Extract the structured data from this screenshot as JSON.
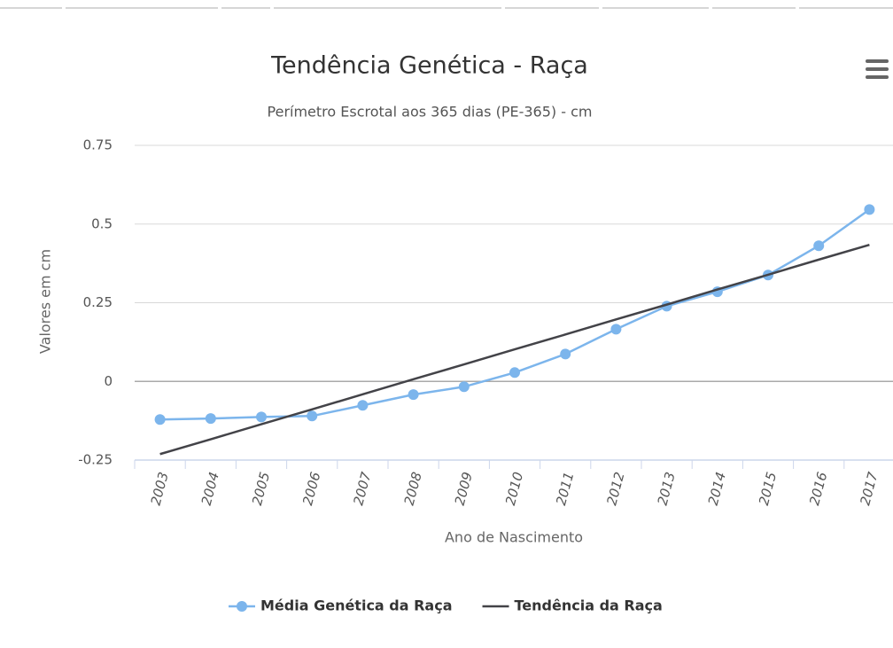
{
  "chart_data": {
    "type": "line",
    "title": "Tendência Genética - Raça",
    "subtitle": "Perímetro Escrotal aos 365 dias (PE-365) - cm",
    "x_label": "Ano de Nascimento",
    "y_label": "Valores em cm",
    "categories": [
      "2003",
      "2004",
      "2005",
      "2006",
      "2007",
      "2008",
      "2009",
      "2010",
      "2011",
      "2012",
      "2013",
      "2014",
      "2015",
      "2016",
      "2017"
    ],
    "series": [
      {
        "name": "Média Genética da Raça",
        "color": "#7cb5ec",
        "markers": true,
        "values": [
          -0.121,
          -0.118,
          -0.113,
          -0.11,
          -0.076,
          -0.042,
          -0.017,
          0.028,
          0.087,
          0.166,
          0.239,
          0.285,
          0.338,
          0.431,
          0.546
        ]
      },
      {
        "name": "Tendência da Raça",
        "color": "#434348",
        "markers": false,
        "values": [
          -0.231,
          -0.184,
          -0.136,
          -0.089,
          -0.041,
          0.007,
          0.054,
          0.102,
          0.149,
          0.197,
          0.244,
          0.292,
          0.339,
          0.387,
          0.434
        ]
      }
    ],
    "ylim": [
      -0.25,
      0.75
    ],
    "yticks": [
      0.75,
      0.5,
      0.25,
      0,
      -0.25
    ],
    "grid": true,
    "legend": "bottom"
  }
}
